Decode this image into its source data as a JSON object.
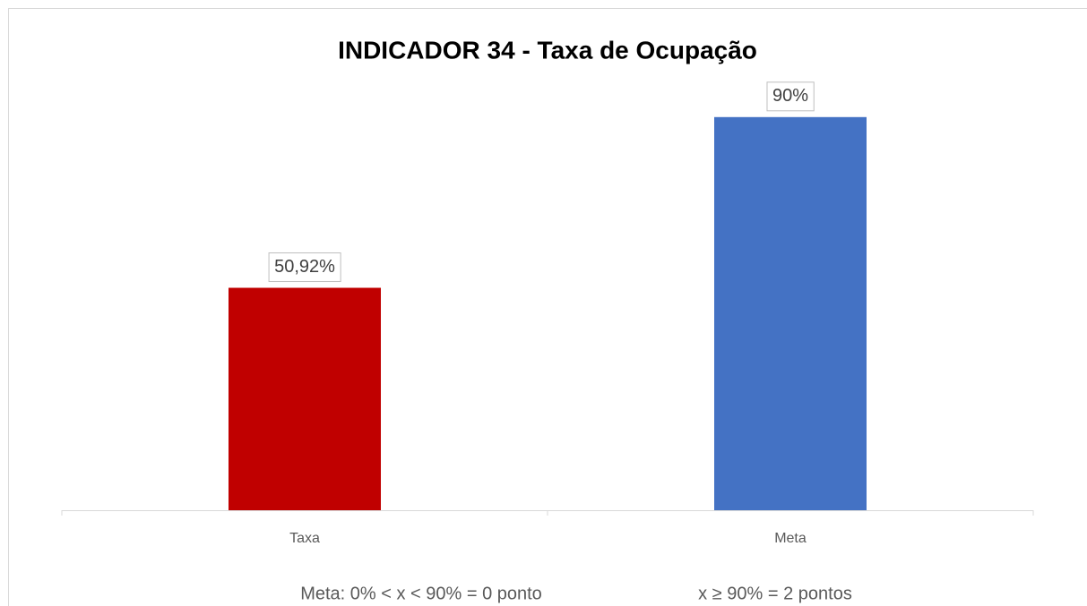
{
  "chart_data": {
    "type": "bar",
    "title": "INDICADOR 34 - Taxa de Ocupação",
    "categories": [
      "Taxa",
      "Meta"
    ],
    "values": [
      50.92,
      90
    ],
    "value_labels": [
      "50,92%",
      "90%"
    ],
    "colors": [
      "#c00000",
      "#4472c4"
    ],
    "ylim": [
      0,
      100
    ],
    "annotations": [
      "Meta: 0% < x < 90% = 0 ponto",
      "x ≥ 90% = 2 pontos"
    ]
  }
}
